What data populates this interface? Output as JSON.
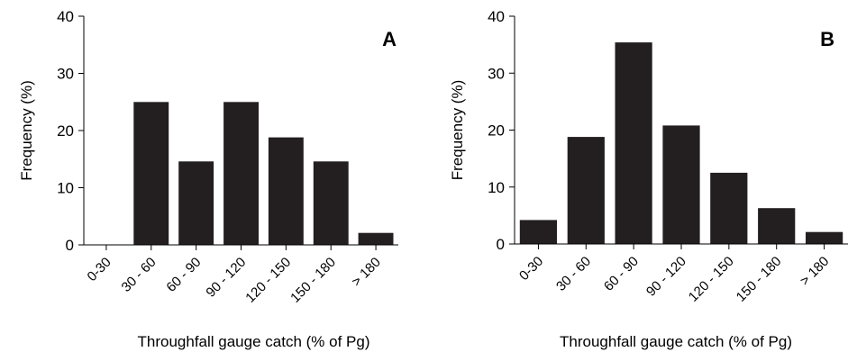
{
  "chart_data": [
    {
      "type": "bar",
      "panel_label": "A",
      "categories": [
        "0-30",
        "30 - 60",
        "60 - 90",
        "90 - 120",
        "120 - 150",
        "150 - 180",
        "> 180"
      ],
      "values": [
        0,
        25,
        14.6,
        25,
        18.8,
        14.6,
        2.1
      ],
      "xlabel": "Throughfall gauge catch (% of Pg)",
      "ylabel": "Frequency (%)",
      "ylim": [
        0,
        40
      ],
      "yticks": [
        "0",
        "10",
        "20",
        "30",
        "40"
      ],
      "grid": false
    },
    {
      "type": "bar",
      "panel_label": "B",
      "categories": [
        "0-30",
        "30 - 60",
        "60 - 90",
        "90 - 120",
        "120 - 150",
        "150 - 180",
        "> 180"
      ],
      "values": [
        4.2,
        18.8,
        35.4,
        20.8,
        12.5,
        6.3,
        2.1
      ],
      "xlabel": "Throughfall gauge catch (% of Pg)",
      "ylabel": "Frequency (%)",
      "ylim": [
        0,
        40
      ],
      "yticks": [
        "0",
        "10",
        "20",
        "30",
        "40"
      ],
      "grid": false
    }
  ]
}
